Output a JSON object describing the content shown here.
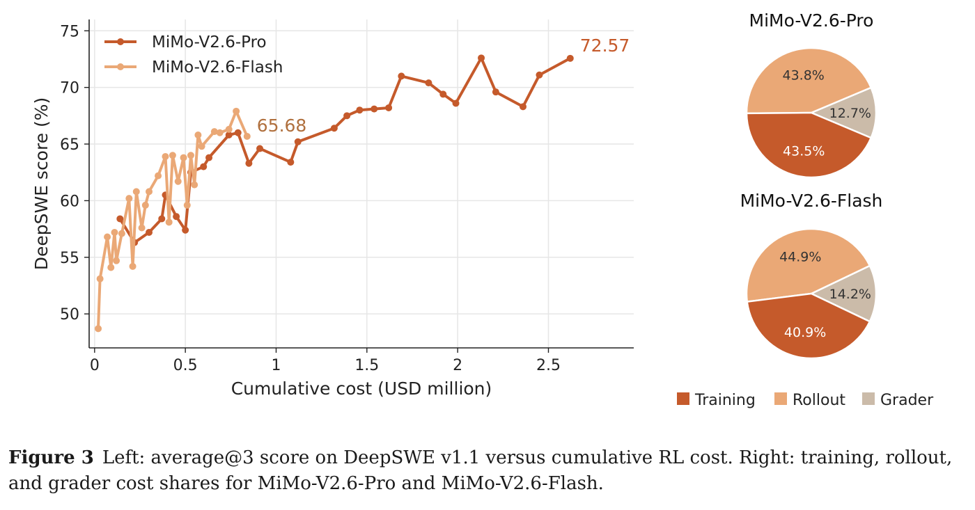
{
  "chart_data": [
    {
      "type": "line",
      "xlabel": "Cumulative cost (USD million)",
      "ylabel": "DeepSWE score (%)",
      "xlim": [
        -0.03,
        2.97
      ],
      "ylim": [
        47,
        76
      ],
      "xticks": [
        0,
        0.5,
        1,
        1.5,
        2,
        2.5
      ],
      "xtick_labels": [
        "0",
        "0.5",
        "1",
        "1.5",
        "2",
        "2.5"
      ],
      "yticks": [
        50,
        55,
        60,
        65,
        70,
        75
      ],
      "ytick_labels": [
        "50",
        "55",
        "60",
        "65",
        "70",
        "75"
      ],
      "grid": true,
      "legend": "top-left",
      "series": [
        {
          "name": "MiMo-V2.6-Pro",
          "color": "#c55a2b",
          "x": [
            0.14,
            0.22,
            0.3,
            0.37,
            0.39,
            0.45,
            0.5,
            0.53,
            0.6,
            0.63,
            0.74,
            0.79,
            0.85,
            0.91,
            1.08,
            1.12,
            1.32,
            1.39,
            1.46,
            1.54,
            1.62,
            1.69,
            1.84,
            1.92,
            1.99,
            2.13,
            2.21,
            2.36,
            2.45,
            2.62
          ],
          "y": [
            58.4,
            56.3,
            57.2,
            58.4,
            60.5,
            58.6,
            57.4,
            62.5,
            63.0,
            63.8,
            65.8,
            66.0,
            63.3,
            64.6,
            63.4,
            65.2,
            66.4,
            67.5,
            68.0,
            68.1,
            68.2,
            71.0,
            70.4,
            69.4,
            68.6,
            72.6,
            69.6,
            68.3,
            71.1,
            72.57
          ],
          "end_label": "72.57"
        },
        {
          "name": "MiMo-V2.6-Flash",
          "color": "#eaa876",
          "x": [
            0.02,
            0.03,
            0.07,
            0.09,
            0.11,
            0.12,
            0.15,
            0.19,
            0.21,
            0.23,
            0.26,
            0.28,
            0.3,
            0.35,
            0.39,
            0.41,
            0.43,
            0.46,
            0.49,
            0.51,
            0.53,
            0.55,
            0.57,
            0.59,
            0.66,
            0.69,
            0.74,
            0.78,
            0.84
          ],
          "y": [
            48.7,
            53.1,
            56.8,
            54.1,
            57.2,
            54.7,
            57.1,
            60.2,
            54.2,
            60.8,
            57.6,
            59.6,
            60.8,
            62.2,
            63.9,
            58.1,
            64.0,
            61.7,
            63.8,
            59.6,
            64.0,
            61.4,
            65.8,
            64.8,
            66.1,
            66.0,
            66.3,
            67.9,
            65.68
          ],
          "end_label": "65.68"
        }
      ]
    },
    {
      "type": "pie",
      "title": "MiMo-V2.6-Pro",
      "categories": [
        "Training",
        "Rollout",
        "Grader"
      ],
      "values": [
        43.5,
        43.8,
        12.7
      ],
      "labels": [
        "43.5%",
        "43.8%",
        "12.7%"
      ],
      "colors": [
        "#c55a2b",
        "#eaa876",
        "#cbbba9"
      ]
    },
    {
      "type": "pie",
      "title": "MiMo-V2.6-Flash",
      "categories": [
        "Training",
        "Rollout",
        "Grader"
      ],
      "values": [
        40.9,
        44.9,
        14.2
      ],
      "labels": [
        "40.9%",
        "44.9%",
        "14.2%"
      ],
      "colors": [
        "#c55a2b",
        "#eaa876",
        "#cbbba9"
      ]
    }
  ],
  "pie_legend": {
    "placement": "bottom",
    "items": [
      {
        "label": "Training",
        "color": "#c55a2b"
      },
      {
        "label": "Rollout",
        "color": "#eaa876"
      },
      {
        "label": "Grader",
        "color": "#cbbba9"
      }
    ]
  },
  "caption": {
    "label": "Figure 3",
    "text": "Left: average@3 score on DeepSWE v1.1 versus cumulative RL cost. Right: training, rollout, and grader cost shares for MiMo-V2.6-Pro and MiMo-V2.6-Flash."
  }
}
